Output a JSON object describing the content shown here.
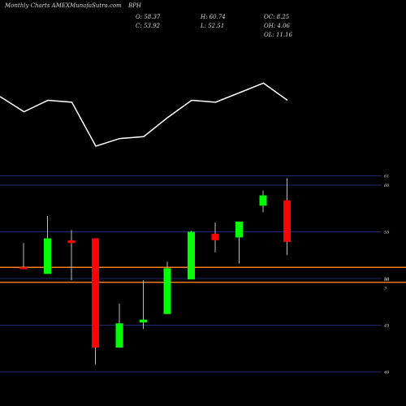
{
  "header": {
    "source": "Monthly Charts AMEXMunafaSutra.com",
    "symbol": "BPH",
    "o": "O: 58.37",
    "c": "C: 53.92",
    "h": "H: 60.74",
    "l": "L: 52.51",
    "oc": "OC: 8.25",
    "oh": "OH: 4.06",
    "ol": "OL: 11.16"
  },
  "colors": {
    "background": "#000000",
    "up": "#00ff00",
    "down": "#ff0000",
    "grid": "#1f2a6e",
    "overlay_line": "#ffffff",
    "level_line": "#ff7b1c",
    "text": "#d8d8d8"
  },
  "chart_data": {
    "type": "candlestick",
    "y_axis_ticks": [
      61,
      60,
      55,
      50,
      45,
      40
    ],
    "extra_tick_labels": [
      {
        "label": "50",
        "value": 49.9
      },
      {
        "label": "3",
        "value": 49
      }
    ],
    "ylim": [
      39.0,
      62.0
    ],
    "level_lines": [
      51.2,
      49.6
    ],
    "candles": [
      {
        "open": 51.2,
        "high": 53.8,
        "low": 51.0,
        "close": 51.0,
        "color": "down"
      },
      {
        "open": 50.5,
        "high": 56.7,
        "low": 50.5,
        "close": 54.3,
        "color": "up"
      },
      {
        "open": 54.1,
        "high": 55.2,
        "low": 49.8,
        "close": 53.8,
        "color": "down"
      },
      {
        "open": 54.3,
        "high": 54.3,
        "low": 40.8,
        "close": 42.6,
        "color": "down"
      },
      {
        "open": 42.6,
        "high": 47.3,
        "low": 42.6,
        "close": 45.2,
        "color": "up"
      },
      {
        "open": 45.3,
        "high": 49.8,
        "low": 44.6,
        "close": 45.6,
        "color": "up"
      },
      {
        "open": 46.2,
        "high": 51.8,
        "low": 46.2,
        "close": 51.1,
        "color": "up"
      },
      {
        "open": 49.9,
        "high": 55.1,
        "low": 49.9,
        "close": 55.0,
        "color": "up"
      },
      {
        "open": 54.8,
        "high": 56.0,
        "low": 52.8,
        "close": 54.1,
        "color": "down"
      },
      {
        "open": 54.4,
        "high": 56.1,
        "low": 51.6,
        "close": 56.1,
        "color": "up"
      },
      {
        "open": 57.8,
        "high": 59.4,
        "low": 57.1,
        "close": 58.9,
        "color": "up"
      },
      {
        "open": 58.37,
        "high": 60.74,
        "low": 52.51,
        "close": 53.92,
        "color": "down"
      }
    ],
    "overlay_line": [
      3.6,
      3.2,
      3.5,
      3.45,
      2.3,
      2.5,
      2.55,
      3.05,
      3.5,
      3.45,
      3.7,
      3.95,
      3.5
    ]
  }
}
